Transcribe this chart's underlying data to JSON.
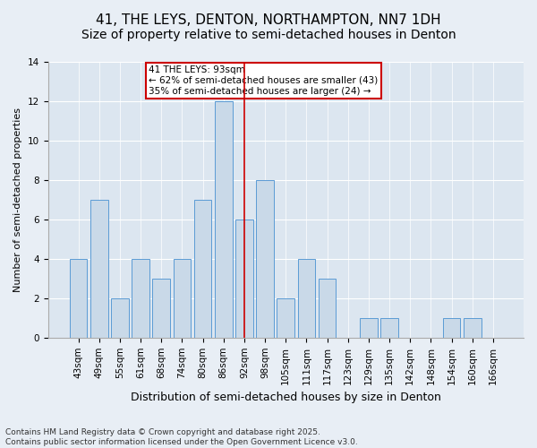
{
  "title": "41, THE LEYS, DENTON, NORTHAMPTON, NN7 1DH",
  "subtitle": "Size of property relative to semi-detached houses in Denton",
  "xlabel": "Distribution of semi-detached houses by size in Denton",
  "ylabel": "Number of semi-detached properties",
  "categories": [
    "43sqm",
    "49sqm",
    "55sqm",
    "61sqm",
    "68sqm",
    "74sqm",
    "80sqm",
    "86sqm",
    "92sqm",
    "98sqm",
    "105sqm",
    "111sqm",
    "117sqm",
    "123sqm",
    "129sqm",
    "135sqm",
    "142sqm",
    "148sqm",
    "154sqm",
    "160sqm",
    "166sqm"
  ],
  "values": [
    4,
    7,
    2,
    4,
    3,
    4,
    7,
    12,
    6,
    8,
    2,
    4,
    3,
    0,
    1,
    1,
    0,
    0,
    1,
    1,
    0
  ],
  "bar_color": "#c9d9e8",
  "bar_edge_color": "#5b9bd5",
  "highlight_index": 8,
  "highlight_line_color": "#cc0000",
  "annotation_text": "41 THE LEYS: 93sqm\n← 62% of semi-detached houses are smaller (43)\n35% of semi-detached houses are larger (24) →",
  "annotation_box_color": "#cc0000",
  "ylim": [
    0,
    14
  ],
  "yticks": [
    0,
    2,
    4,
    6,
    8,
    10,
    12,
    14
  ],
  "background_color": "#dce6f0",
  "fig_background_color": "#e8eef5",
  "footer_text": "Contains HM Land Registry data © Crown copyright and database right 2025.\nContains public sector information licensed under the Open Government Licence v3.0.",
  "title_fontsize": 11,
  "xlabel_fontsize": 9,
  "ylabel_fontsize": 8,
  "tick_fontsize": 7.5,
  "annotation_fontsize": 7.5,
  "footer_fontsize": 6.5
}
